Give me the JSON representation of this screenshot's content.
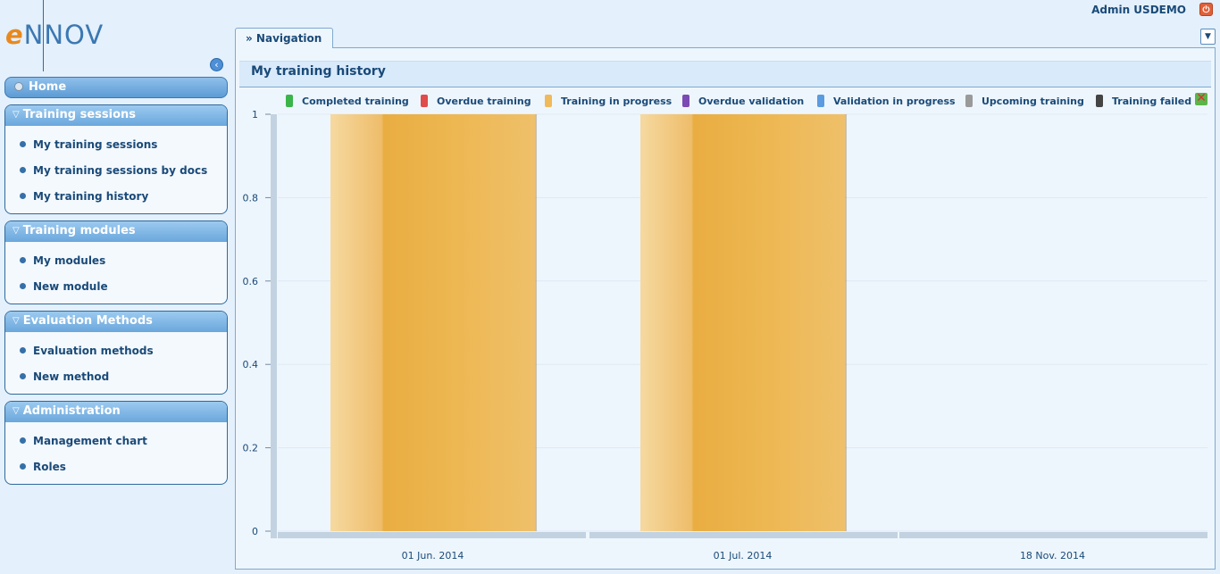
{
  "header": {
    "logo_prefix": "e",
    "logo_rest": "NNOV",
    "user": "Admin USDEMO"
  },
  "sidebar": {
    "home": "Home",
    "sections": [
      {
        "title": "Training sessions",
        "items": [
          "My training sessions",
          "My training sessions by docs",
          "My training history"
        ]
      },
      {
        "title": "Training modules",
        "items": [
          "My modules",
          "New module"
        ]
      },
      {
        "title": "Evaluation Methods",
        "items": [
          "Evaluation methods",
          "New method"
        ]
      },
      {
        "title": "Administration",
        "items": [
          "Management chart",
          "Roles"
        ]
      }
    ]
  },
  "tabs": {
    "navigation": "» Navigation"
  },
  "page": {
    "title": "My training history"
  },
  "legend": [
    {
      "label": "Completed training",
      "color": "#3bb54a"
    },
    {
      "label": "Overdue training",
      "color": "#e04b4b"
    },
    {
      "label": "Training in progress",
      "color": "#f0b95a"
    },
    {
      "label": "Overdue validation",
      "color": "#7b4ab3"
    },
    {
      "label": "Validation in progress",
      "color": "#5b9be0"
    },
    {
      "label": "Upcoming training",
      "color": "#9a9a9a"
    },
    {
      "label": "Training failed",
      "color": "#444444"
    }
  ],
  "chart_data": {
    "type": "bar",
    "categories": [
      "01 Jun. 2014",
      "01 Jul. 2014",
      "18 Nov. 2014"
    ],
    "series": [
      {
        "name": "Training in progress",
        "values": [
          1,
          1,
          0
        ]
      }
    ],
    "ylim": [
      0,
      1
    ],
    "yticks": [
      "0",
      "0.2",
      "0.4",
      "0.6",
      "0.8",
      "1"
    ],
    "grid": true,
    "legend_position": "top"
  }
}
